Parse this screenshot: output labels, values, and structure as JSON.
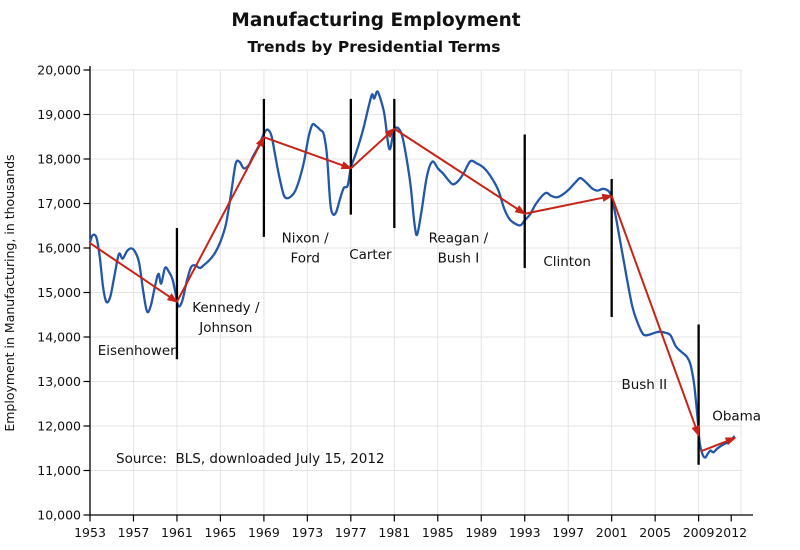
{
  "header": {
    "title": "Manufacturing Employment",
    "subtitle": "Trends by Presidential Terms"
  },
  "axes": {
    "y_title": "Employment in Manufacturing, in thousands"
  },
  "footer": {
    "source": "Source:  BLS, downloaded July 15, 2012"
  },
  "chart_data": {
    "type": "line",
    "title": "Manufacturing Employment",
    "subtitle": "Trends by Presidential Terms",
    "xlabel": "",
    "ylabel": "Employment in Manufacturing, in thousands",
    "source_note": "Source:  BLS, downloaded July 15, 2012",
    "grid": true,
    "legend": "none",
    "xlim": [
      1953,
      2012.9
    ],
    "ylim": [
      10000,
      20000
    ],
    "xticks": [
      1953,
      1957,
      1961,
      1965,
      1969,
      1973,
      1977,
      1981,
      1985,
      1989,
      1993,
      1997,
      2001,
      2005,
      2009,
      2012
    ],
    "yticks": [
      10000,
      11000,
      12000,
      13000,
      14000,
      15000,
      16000,
      17000,
      18000,
      19000,
      20000
    ],
    "colors": {
      "line": "#2457A7",
      "arrow": "#C92318",
      "separator": "#000000",
      "gridline": "#E4E4E4",
      "axis": "#000000"
    },
    "series": [
      {
        "name": "Manufacturing employment, monthly, thousands",
        "color": "#2457A7",
        "points": [
          [
            1953.0,
            16130
          ],
          [
            1953.25,
            16290
          ],
          [
            1953.6,
            16230
          ],
          [
            1953.9,
            15790
          ],
          [
            1954.2,
            15130
          ],
          [
            1954.5,
            14790
          ],
          [
            1954.85,
            14890
          ],
          [
            1955.2,
            15310
          ],
          [
            1955.65,
            15860
          ],
          [
            1956.0,
            15760
          ],
          [
            1956.4,
            15930
          ],
          [
            1956.8,
            15990
          ],
          [
            1957.1,
            15930
          ],
          [
            1957.5,
            15690
          ],
          [
            1957.9,
            15020
          ],
          [
            1958.25,
            14570
          ],
          [
            1958.6,
            14710
          ],
          [
            1959.0,
            15160
          ],
          [
            1959.3,
            15420
          ],
          [
            1959.55,
            15200
          ],
          [
            1959.9,
            15550
          ],
          [
            1960.25,
            15470
          ],
          [
            1960.6,
            15290
          ],
          [
            1960.9,
            14940
          ],
          [
            1961.15,
            14690
          ],
          [
            1961.5,
            14820
          ],
          [
            1961.9,
            15250
          ],
          [
            1962.3,
            15570
          ],
          [
            1962.7,
            15610
          ],
          [
            1963.1,
            15550
          ],
          [
            1963.5,
            15620
          ],
          [
            1964.0,
            15730
          ],
          [
            1964.5,
            15890
          ],
          [
            1965.0,
            16140
          ],
          [
            1965.5,
            16530
          ],
          [
            1966.0,
            17260
          ],
          [
            1966.4,
            17890
          ],
          [
            1966.75,
            17940
          ],
          [
            1967.15,
            17790
          ],
          [
            1967.6,
            17860
          ],
          [
            1968.0,
            18060
          ],
          [
            1968.5,
            18280
          ],
          [
            1969.0,
            18570
          ],
          [
            1969.35,
            18660
          ],
          [
            1969.7,
            18520
          ],
          [
            1970.0,
            18130
          ],
          [
            1970.4,
            17620
          ],
          [
            1970.8,
            17210
          ],
          [
            1971.1,
            17120
          ],
          [
            1971.5,
            17160
          ],
          [
            1971.9,
            17290
          ],
          [
            1972.3,
            17570
          ],
          [
            1972.7,
            17950
          ],
          [
            1973.1,
            18480
          ],
          [
            1973.45,
            18770
          ],
          [
            1973.8,
            18740
          ],
          [
            1974.2,
            18650
          ],
          [
            1974.5,
            18560
          ],
          [
            1974.8,
            18100
          ],
          [
            1975.1,
            17030
          ],
          [
            1975.35,
            16760
          ],
          [
            1975.65,
            16810
          ],
          [
            1976.0,
            17100
          ],
          [
            1976.35,
            17350
          ],
          [
            1976.7,
            17400
          ],
          [
            1977.0,
            17800
          ],
          [
            1977.4,
            18080
          ],
          [
            1977.8,
            18380
          ],
          [
            1978.2,
            18730
          ],
          [
            1978.6,
            19140
          ],
          [
            1978.95,
            19450
          ],
          [
            1979.15,
            19360
          ],
          [
            1979.45,
            19520
          ],
          [
            1979.8,
            19290
          ],
          [
            1980.1,
            18990
          ],
          [
            1980.45,
            18320
          ],
          [
            1980.65,
            18250
          ],
          [
            1980.95,
            18630
          ],
          [
            1981.3,
            18700
          ],
          [
            1981.7,
            18540
          ],
          [
            1982.1,
            18050
          ],
          [
            1982.5,
            17400
          ],
          [
            1982.85,
            16560
          ],
          [
            1983.1,
            16300
          ],
          [
            1983.5,
            16820
          ],
          [
            1984.0,
            17610
          ],
          [
            1984.5,
            17940
          ],
          [
            1985.0,
            17790
          ],
          [
            1985.5,
            17670
          ],
          [
            1986.0,
            17520
          ],
          [
            1986.4,
            17430
          ],
          [
            1986.9,
            17510
          ],
          [
            1987.4,
            17690
          ],
          [
            1988.0,
            17950
          ],
          [
            1988.6,
            17900
          ],
          [
            1989.1,
            17830
          ],
          [
            1989.6,
            17700
          ],
          [
            1990.1,
            17520
          ],
          [
            1990.6,
            17280
          ],
          [
            1991.1,
            16890
          ],
          [
            1991.6,
            16650
          ],
          [
            1992.1,
            16550
          ],
          [
            1992.6,
            16510
          ],
          [
            1993.0,
            16620
          ],
          [
            1993.5,
            16760
          ],
          [
            1994.0,
            16980
          ],
          [
            1994.6,
            17170
          ],
          [
            1995.0,
            17240
          ],
          [
            1995.45,
            17170
          ],
          [
            1996.0,
            17140
          ],
          [
            1996.6,
            17220
          ],
          [
            1997.2,
            17350
          ],
          [
            1997.8,
            17510
          ],
          [
            1998.15,
            17570
          ],
          [
            1998.7,
            17460
          ],
          [
            1999.2,
            17340
          ],
          [
            1999.7,
            17290
          ],
          [
            2000.2,
            17330
          ],
          [
            2000.7,
            17280
          ],
          [
            2001.0,
            17130
          ],
          [
            2001.4,
            16680
          ],
          [
            2001.9,
            15990
          ],
          [
            2002.4,
            15310
          ],
          [
            2002.9,
            14690
          ],
          [
            2003.4,
            14310
          ],
          [
            2003.9,
            14060
          ],
          [
            2004.4,
            14050
          ],
          [
            2004.9,
            14090
          ],
          [
            2005.4,
            14120
          ],
          [
            2005.9,
            14100
          ],
          [
            2006.4,
            14040
          ],
          [
            2006.9,
            13790
          ],
          [
            2007.4,
            13670
          ],
          [
            2007.9,
            13560
          ],
          [
            2008.25,
            13380
          ],
          [
            2008.6,
            12910
          ],
          [
            2008.9,
            12190
          ],
          [
            2009.1,
            11620
          ],
          [
            2009.35,
            11370
          ],
          [
            2009.6,
            11290
          ],
          [
            2009.85,
            11380
          ],
          [
            2010.1,
            11450
          ],
          [
            2010.35,
            11410
          ],
          [
            2010.7,
            11490
          ],
          [
            2011.1,
            11560
          ],
          [
            2011.5,
            11610
          ],
          [
            2011.9,
            11660
          ],
          [
            2012.25,
            11760
          ]
        ]
      }
    ],
    "trend_arrows": [
      {
        "key": "eisenhower",
        "president": "Eisenhower",
        "from": [
          1953.0,
          16110
        ],
        "to": [
          1961.0,
          14790
        ]
      },
      {
        "key": "kennedy-johnson",
        "president": "Kennedy / Johnson",
        "from": [
          1961.0,
          14790
        ],
        "to": [
          1969.0,
          18490
        ]
      },
      {
        "key": "nixon-ford",
        "president": "Nixon / Ford",
        "from": [
          1969.0,
          18490
        ],
        "to": [
          1977.0,
          17790
        ]
      },
      {
        "key": "carter",
        "president": "Carter",
        "from": [
          1977.0,
          17790
        ],
        "to": [
          1981.0,
          18680
        ]
      },
      {
        "key": "reagan-bush-i",
        "president": "Reagan / Bush I",
        "from": [
          1981.0,
          18680
        ],
        "to": [
          1993.0,
          16770
        ]
      },
      {
        "key": "clinton",
        "president": "Clinton",
        "from": [
          1993.0,
          16770
        ],
        "to": [
          2001.0,
          17170
        ]
      },
      {
        "key": "bush-ii",
        "president": "Bush II",
        "from": [
          2001.0,
          17170
        ],
        "to": [
          2009.0,
          11790
        ]
      },
      {
        "key": "obama",
        "president": "Obama",
        "from": [
          2009.2,
          11430
        ],
        "to": [
          2012.35,
          11730
        ]
      }
    ],
    "term_separators": [
      {
        "year": 1961,
        "value_top": 16450,
        "value_bottom": 13500
      },
      {
        "year": 1969,
        "value_top": 19350,
        "value_bottom": 16250
      },
      {
        "year": 1977,
        "value_top": 19350,
        "value_bottom": 16750
      },
      {
        "year": 1981,
        "value_top": 19350,
        "value_bottom": 16450
      },
      {
        "year": 1993,
        "value_top": 18550,
        "value_bottom": 15550
      },
      {
        "year": 2001,
        "value_top": 17550,
        "value_bottom": 14450
      },
      {
        "year": 2009,
        "value_top": 14280,
        "value_bottom": 11130
      }
    ],
    "president_labels": [
      {
        "key": "eisenhower",
        "lines": [
          "Eisenhower"
        ],
        "x": 1957.3,
        "value": 13700
      },
      {
        "key": "kennedy-johnson",
        "lines": [
          "Kennedy /",
          "Johnson"
        ],
        "x": 1965.5,
        "value": 14420
      },
      {
        "key": "nixon-ford",
        "lines": [
          "Nixon /",
          "Ford"
        ],
        "x": 1972.8,
        "value": 15980
      },
      {
        "key": "carter",
        "lines": [
          "Carter"
        ],
        "x": 1978.8,
        "value": 15850
      },
      {
        "key": "reagan-bush-i",
        "lines": [
          "Reagan /",
          "Bush I"
        ],
        "x": 1986.9,
        "value": 15980
      },
      {
        "key": "clinton",
        "lines": [
          "Clinton"
        ],
        "x": 1996.9,
        "value": 15700
      },
      {
        "key": "bush-ii",
        "lines": [
          "Bush II"
        ],
        "x": 2004.0,
        "value": 12930
      },
      {
        "key": "obama",
        "lines": [
          "Obama"
        ],
        "x": 2012.5,
        "value": 12230
      }
    ]
  }
}
